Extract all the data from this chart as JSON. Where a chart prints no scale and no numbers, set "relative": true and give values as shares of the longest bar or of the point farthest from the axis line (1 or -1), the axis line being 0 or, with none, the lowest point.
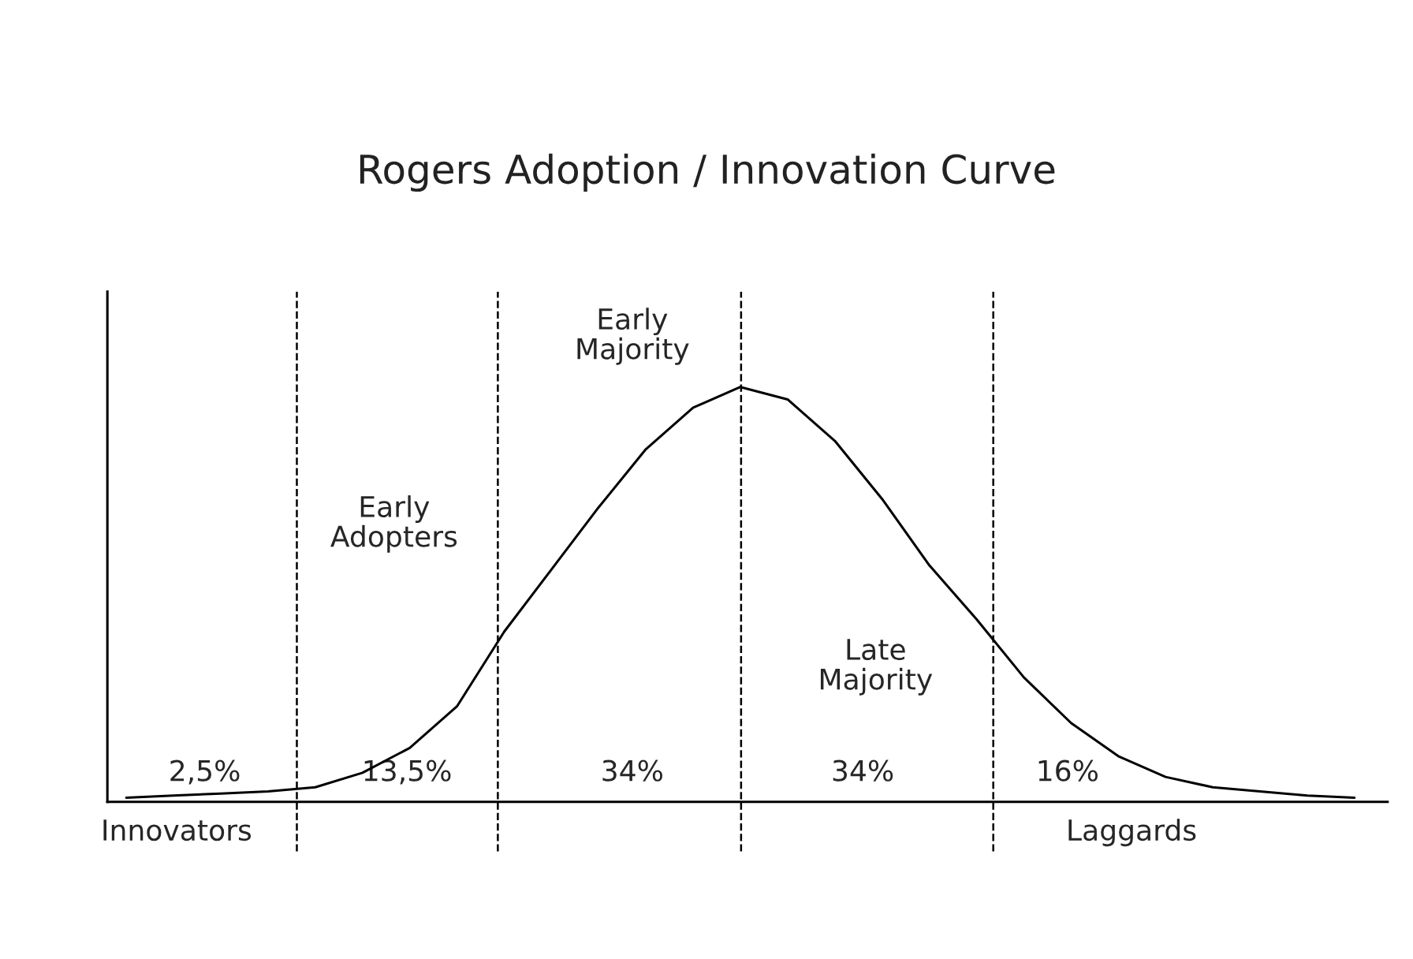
{
  "chart_data": {
    "type": "line",
    "title": "Rogers Adoption / Innovation Curve",
    "relative": true,
    "marker": "none",
    "line_style": "solid",
    "categories": [
      null,
      null,
      null,
      null,
      null,
      null,
      null,
      null,
      null,
      null,
      null,
      null,
      null,
      null,
      null,
      null,
      null,
      null,
      null,
      null,
      null,
      null,
      null,
      null,
      null,
      null,
      null
    ],
    "series": [
      {
        "color": "#000000",
        "values": [
          0.01,
          0.015,
          0.02,
          0.025,
          0.035,
          0.07,
          0.13,
          0.23,
          0.41,
          0.56,
          0.71,
          0.85,
          0.95,
          1,
          0.97,
          0.87,
          0.73,
          0.57,
          0.44,
          0.3,
          0.19,
          0.11,
          0.06,
          0.035,
          0.025,
          0.015,
          0.01
        ]
      }
    ],
    "annotations": [
      "Early\nAdopters",
      "Early\nMajority",
      "Late\nMajority",
      "2,5%",
      "13,5%",
      "34%",
      "34%",
      "16%",
      "Innovators",
      "Laggards"
    ]
  }
}
